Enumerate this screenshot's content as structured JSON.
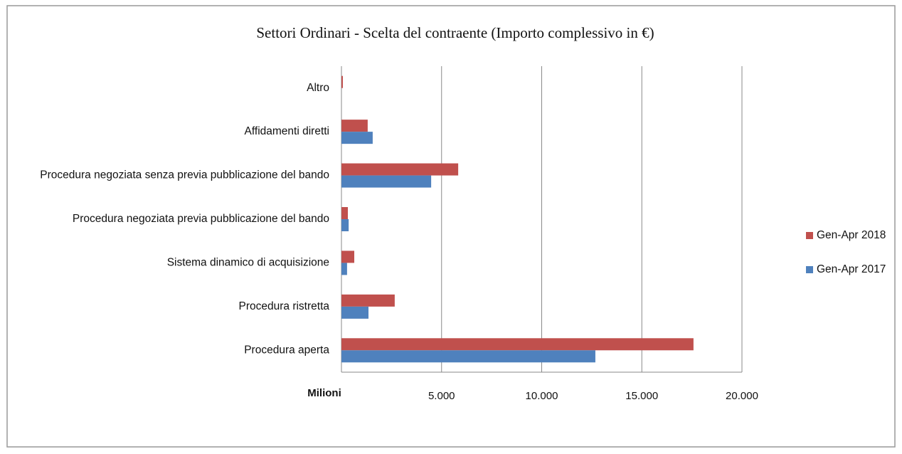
{
  "chart_data": {
    "type": "hbar",
    "title": "Settori Ordinari - Scelta del contraente (Importo complessivo in €)",
    "x_label": "Milioni",
    "categories": [
      "Altro",
      "Affidamenti diretti",
      "Procedura negoziata senza previa pubblicazione del bando",
      "Procedura negoziata previa pubblicazione del bando",
      "Sistema dinamico di acquisizione",
      "Procedura ristretta",
      "Procedura aperta"
    ],
    "series": [
      {
        "name": "Gen-Apr 2018",
        "color": "#c0504d",
        "values": [
          70,
          1310,
          5830,
          320,
          640,
          2660,
          17580
        ]
      },
      {
        "name": "Gen-Apr 2017",
        "color": "#4f81bd",
        "values": [
          0,
          1560,
          4480,
          360,
          280,
          1350,
          12680
        ]
      }
    ],
    "xlim": [
      0,
      20000
    ],
    "xticks": [
      {
        "value": 5000,
        "label": "5.000"
      },
      {
        "value": 10000,
        "label": "10.000"
      },
      {
        "value": 15000,
        "label": "15.000"
      },
      {
        "value": 20000,
        "label": "20.000"
      }
    ],
    "grid": true,
    "legend": "right"
  }
}
